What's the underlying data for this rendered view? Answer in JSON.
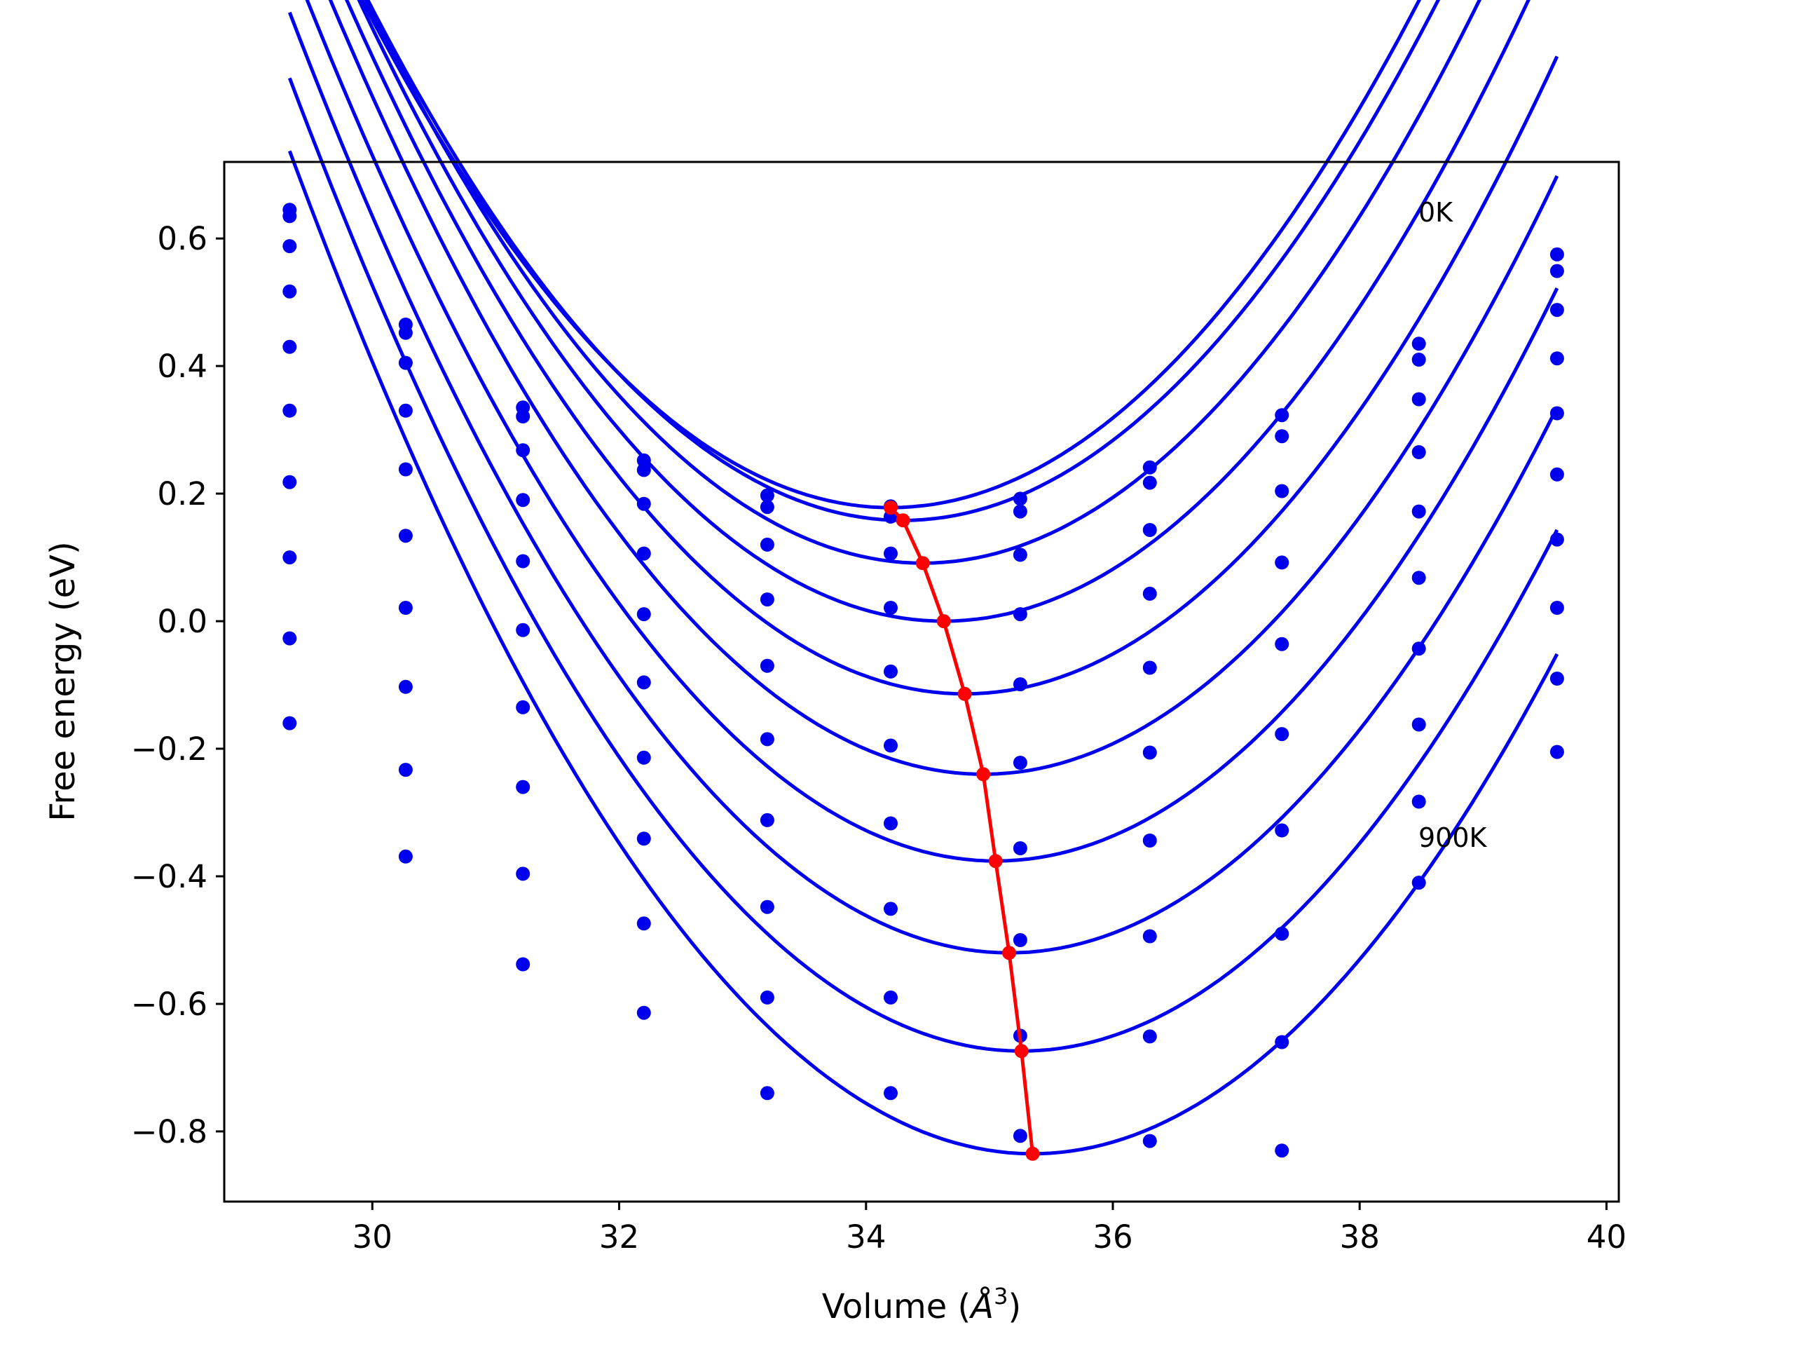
{
  "chart_data": {
    "type": "line",
    "title": "",
    "xlabel": "Volume (",
    "xlabel_unit_letter": "Å",
    "xlabel_unit_power": "3",
    "xlabel_close": ")",
    "ylabel": "Free energy (eV)",
    "xlim": [
      28.8,
      40.1
    ],
    "ylim": [
      -0.91,
      0.72
    ],
    "xticks": [
      30,
      32,
      34,
      36,
      38,
      40
    ],
    "yticks": [
      -0.8,
      -0.6,
      -0.4,
      -0.2,
      0.0,
      0.2,
      0.4,
      0.6
    ],
    "xtick_labels": [
      "30",
      "32",
      "34",
      "36",
      "38",
      "40"
    ],
    "ytick_labels": [
      "−0.8",
      "−0.6",
      "−0.4",
      "−0.2",
      "0.0",
      "0.2",
      "0.4",
      "0.6"
    ],
    "grid": false,
    "annotations": [
      {
        "text": "0K",
        "x": 38.5,
        "y": 0.63
      },
      {
        "text": "900K",
        "x": 38.5,
        "y": -0.35
      }
    ],
    "fit_x_range": [
      29.33,
      39.6
    ],
    "data_x": [
      29.33,
      30.27,
      31.22,
      32.2,
      33.2,
      34.2,
      35.25,
      36.3,
      37.37,
      38.48,
      39.6
    ],
    "series": [
      {
        "y": [
          0.645,
          0.465,
          0.335,
          0.252,
          0.197,
          0.18,
          0.192,
          0.241,
          0.323,
          0.435,
          0.575
        ],
        "fit": {
          "a": 0.04338,
          "x0": 34.2,
          "f0": 0.178
        }
      },
      {
        "y": [
          0.635,
          0.452,
          0.321,
          0.237,
          0.179,
          0.164,
          0.172,
          0.217,
          0.29,
          0.41,
          0.549
        ],
        "fit": {
          "a": 0.04338,
          "x0": 34.3,
          "f0": 0.158
        }
      },
      {
        "y": [
          0.588,
          0.405,
          0.268,
          0.184,
          0.12,
          0.106,
          0.104,
          0.143,
          0.204,
          0.348,
          0.488
        ],
        "fit": {
          "a": 0.04338,
          "x0": 34.46,
          "f0": 0.091
        }
      },
      {
        "y": [
          0.517,
          0.33,
          0.19,
          0.106,
          0.034,
          0.021,
          0.011,
          0.043,
          0.092,
          0.265,
          0.412
        ],
        "fit": {
          "a": 0.04338,
          "x0": 34.63,
          "f0": 0.0
        }
      },
      {
        "y": [
          0.43,
          0.238,
          0.094,
          0.011,
          -0.07,
          -0.079,
          -0.099,
          -0.073,
          -0.036,
          0.172,
          0.326
        ],
        "fit": {
          "a": 0.04338,
          "x0": 34.8,
          "f0": -0.114
        }
      },
      {
        "y": [
          0.33,
          0.134,
          -0.014,
          -0.096,
          -0.185,
          -0.195,
          -0.222,
          -0.206,
          -0.177,
          0.068,
          0.23
        ],
        "fit": {
          "a": 0.04338,
          "x0": 34.95,
          "f0": -0.24
        }
      },
      {
        "y": [
          0.218,
          0.021,
          -0.135,
          -0.214,
          -0.312,
          -0.317,
          -0.356,
          -0.344,
          -0.328,
          -0.043,
          0.128
        ],
        "fit": {
          "a": 0.04338,
          "x0": 35.05,
          "f0": -0.376
        }
      },
      {
        "y": [
          0.1,
          -0.103,
          -0.26,
          -0.341,
          -0.448,
          -0.451,
          -0.5,
          -0.494,
          -0.49,
          -0.162,
          0.021
        ],
        "fit": {
          "a": 0.04338,
          "x0": 35.16,
          "f0": -0.52
        }
      },
      {
        "y": [
          -0.027,
          -0.233,
          -0.396,
          -0.474,
          -0.59,
          -0.59,
          -0.65,
          -0.651,
          -0.66,
          -0.283,
          -0.09
        ],
        "fit": {
          "a": 0.04338,
          "x0": 35.26,
          "f0": -0.674
        }
      },
      {
        "y": [
          -0.16,
          -0.369,
          -0.538,
          -0.614,
          -0.74,
          -0.74,
          -0.807,
          -0.815,
          -0.83,
          -0.41,
          -0.205
        ],
        "fit": {
          "a": 0.04338,
          "x0": 35.35,
          "f0": -0.835
        }
      }
    ],
    "minima": {
      "x": [
        34.2,
        34.3,
        34.46,
        34.63,
        34.8,
        34.95,
        35.05,
        35.16,
        35.26,
        35.35
      ],
      "y": [
        0.178,
        0.158,
        0.091,
        0.0,
        -0.114,
        -0.24,
        -0.376,
        -0.52,
        -0.674,
        -0.835
      ]
    },
    "colors": {
      "fits": "#0000ee",
      "points": "#0000ee",
      "minima": "#ff0000",
      "axes": "#000000"
    }
  }
}
